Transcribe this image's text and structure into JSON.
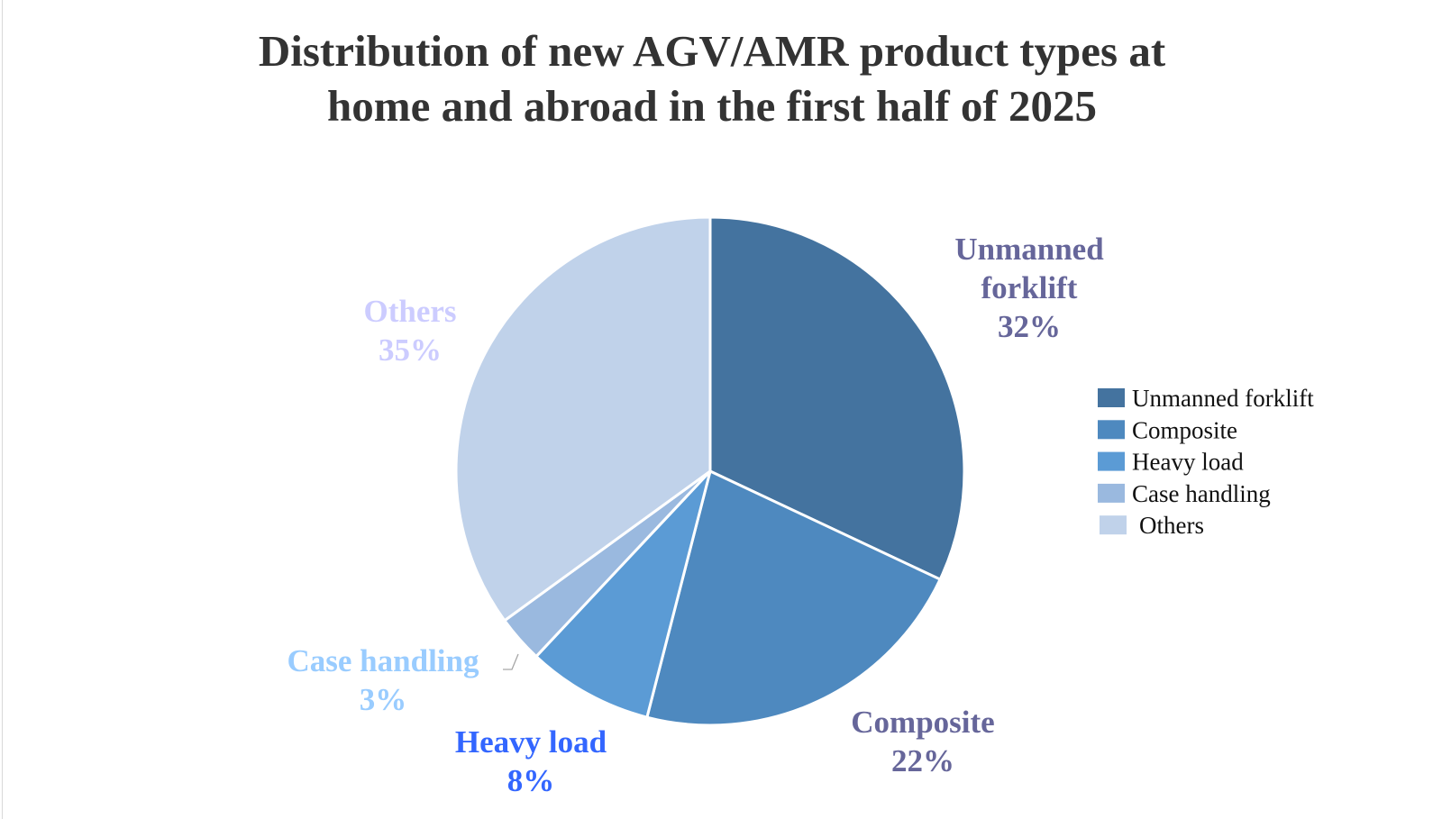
{
  "chart_data": {
    "type": "pie",
    "title_lines": [
      "Distribution of new AGV/AMR product types at",
      "home and abroad in the first half of 2025"
    ],
    "start_angle": "top",
    "direction": "clockwise",
    "slices": [
      {
        "name": "Unmanned forklift",
        "label_lines": [
          "Unmanned",
          "forklift"
        ],
        "value": 32,
        "value_label": "32%",
        "color": "#44739f",
        "label_color": "#66669a"
      },
      {
        "name": "Composite",
        "label_lines": [
          "Composite"
        ],
        "value": 22,
        "value_label": "22%",
        "color": "#4e89bf",
        "label_color": "#66669a"
      },
      {
        "name": "Heavy load",
        "label_lines": [
          "Heavy load"
        ],
        "value": 8,
        "value_label": "8%",
        "color": "#5b9bd5",
        "label_color": "#3366ff"
      },
      {
        "name": "Case handling",
        "label_lines": [
          "Case handling"
        ],
        "value": 3,
        "value_label": "3%",
        "color": "#9ab9df",
        "label_color": "#99ccff"
      },
      {
        "name": "Others",
        "label_lines": [
          "Others"
        ],
        "value": 35,
        "value_label": "35%",
        "color": "#c0d2ea",
        "label_color": "#ccccff"
      }
    ],
    "legend_position": "right"
  }
}
